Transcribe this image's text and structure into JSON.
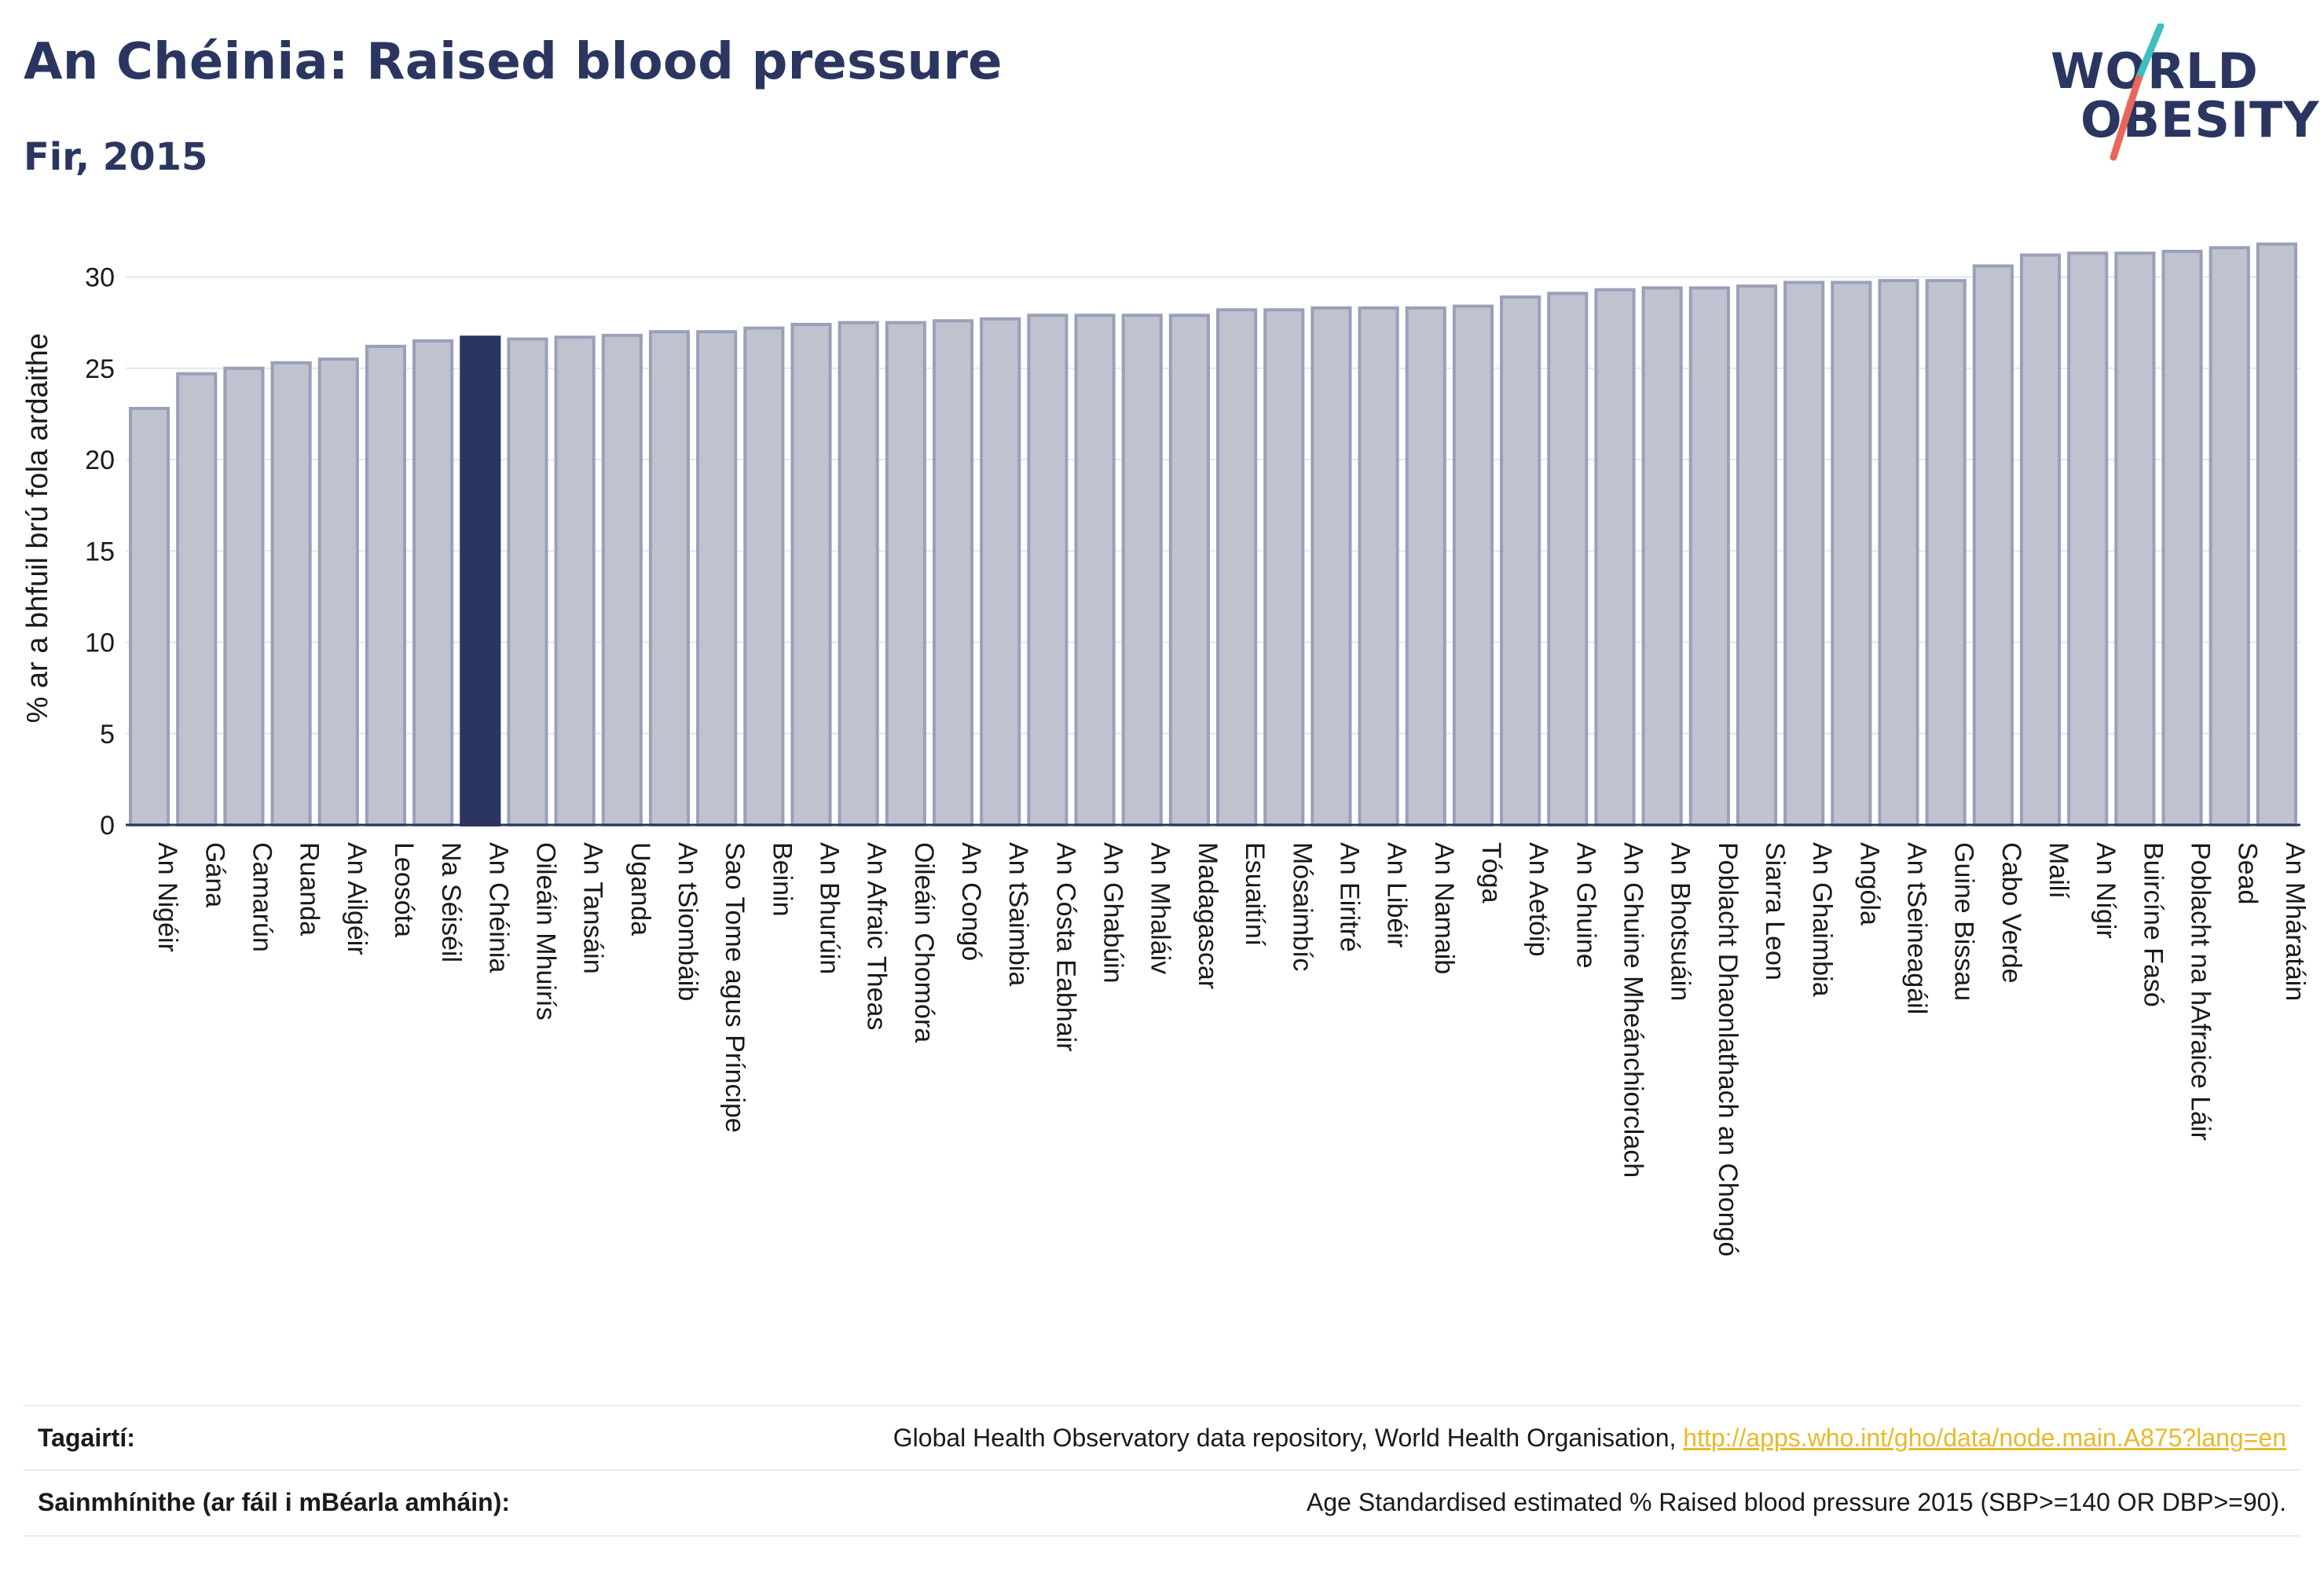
{
  "header": {
    "title": "An Chéinia: Raised blood pressure",
    "subtitle": "Fir, 2015"
  },
  "logo": {
    "line1": "WORLD",
    "line2": "OBESITY",
    "slash_colors": [
      "#3fbfbf",
      "#e8675a"
    ]
  },
  "chart_data": {
    "type": "bar",
    "title": "",
    "xlabel": "",
    "ylabel": "% ar a bhfuil brú fola ardaithe",
    "ylim": [
      0,
      32.5
    ],
    "yticks": [
      0,
      5,
      10,
      15,
      20,
      25,
      30
    ],
    "grid": true,
    "highlight": "An Chéinia",
    "colors": {
      "bar": "#bfc3d0",
      "bar_edge": "#9aa0b8",
      "highlight": "#2b3660"
    },
    "categories": [
      "An Nigéir",
      "Gána",
      "Camarún",
      "Ruanda",
      "An Ailgéir",
      "Leosóta",
      "Na Séiséil",
      "An Chéinia",
      "Oileáin Mhuirís",
      "An Tansáin",
      "Uganda",
      "An tSiombáib",
      "Sao Tome agus Príncipe",
      "Beinin",
      "An Bhurúin",
      "An Afraic Theas",
      "Oileáin Chomóra",
      "An Congó",
      "An tSaimbia",
      "An Cósta Eabhair",
      "An Ghabúin",
      "An Mhaláiv",
      "Madagascar",
      "Esuaitíní",
      "Mósaimbíc",
      "An Eiritré",
      "An Libéir",
      "An Namaib",
      "Tóga",
      "An Aetóip",
      "An Ghuine",
      "An Ghuine Mheánchiorclach",
      "An Bhotsuáin",
      "Poblacht Dhaonlathach an Chongó",
      "Siarra Leon",
      "An Ghaimbia",
      "Angóla",
      "An tSeineagáil",
      "Guine Bissau",
      "Cabo Verde",
      "Mailí",
      "An Nígir",
      "Buircíne Fasó",
      "Poblacht na hAfraice Láir",
      "Sead",
      "An Mháratáin"
    ],
    "values": [
      22.8,
      24.7,
      25.0,
      25.3,
      25.5,
      26.2,
      26.5,
      26.7,
      26.6,
      26.7,
      26.8,
      27.0,
      27.0,
      27.2,
      27.4,
      27.5,
      27.5,
      27.6,
      27.7,
      27.9,
      27.9,
      27.9,
      27.9,
      28.2,
      28.2,
      28.3,
      28.3,
      28.3,
      28.4,
      28.9,
      29.1,
      29.3,
      29.4,
      29.4,
      29.5,
      29.7,
      29.7,
      29.8,
      29.8,
      30.6,
      31.2,
      31.3,
      31.3,
      31.4,
      31.6,
      31.8
    ]
  },
  "footer": {
    "references_label": "Tagairtí:",
    "references_text": "Global Health Observatory data repository, World Health Organisation, ",
    "references_link": "http://apps.who.int/gho/data/node.main.A875?lang=en",
    "definitions_label": "Sainmhínithe (ar fáil i mBéarla amháin):",
    "definitions_text": "Age Standardised estimated % Raised blood pressure 2015 (SBP>=140 OR DBP>=90)."
  }
}
